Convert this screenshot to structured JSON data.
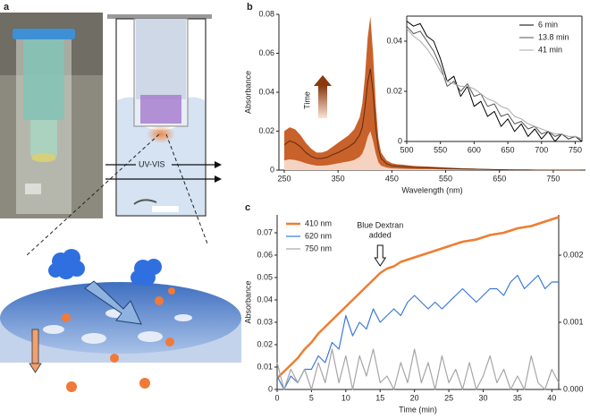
{
  "panel_a": {
    "label": "a",
    "beam_label": "UV-VIS"
  },
  "chart_data": [
    {
      "type": "line",
      "panel_label": "b",
      "x_label": "Wavelength (nm)",
      "y_label": "Absorbance",
      "colorbar_label": "Time",
      "x": [
        250,
        260,
        270,
        280,
        290,
        300,
        310,
        320,
        330,
        340,
        350,
        360,
        370,
        380,
        390,
        395,
        400,
        405,
        410,
        415,
        420,
        425,
        430,
        440,
        450,
        460,
        470,
        480,
        490,
        500,
        520,
        540,
        560,
        580,
        600,
        620,
        640,
        660,
        680,
        700,
        720,
        740,
        760,
        780,
        800
      ],
      "series": [
        {
          "color": "#c9612a",
          "fill": true,
          "values": [
            0.02,
            0.022,
            0.021,
            0.018,
            0.014,
            0.011,
            0.009,
            0.009,
            0.01,
            0.012,
            0.014,
            0.016,
            0.018,
            0.021,
            0.027,
            0.034,
            0.048,
            0.068,
            0.079,
            0.06,
            0.034,
            0.016,
            0.009,
            0.005,
            0.0035,
            0.003,
            0.0028,
            0.0025,
            0.0022,
            0.002,
            0.0018,
            0.0015,
            0.0012,
            0.001,
            0.0008,
            0.0006,
            0.0004,
            0.0003,
            0.0002,
            0.0001,
            0,
            0,
            0,
            0,
            0
          ]
        },
        {
          "color": "#f6d3c0",
          "fill": true,
          "values": [
            0.005,
            0.0055,
            0.0052,
            0.0045,
            0.0035,
            0.0028,
            0.0023,
            0.0023,
            0.0025,
            0.003,
            0.0035,
            0.004,
            0.0045,
            0.0052,
            0.0068,
            0.0085,
            0.012,
            0.017,
            0.02,
            0.015,
            0.0085,
            0.004,
            0.0023,
            0.0013,
            0.0009,
            0.0008,
            0.0007,
            0.0006,
            0.0006,
            0.0005,
            0.0005,
            0.0004,
            0.0003,
            0.0003,
            0.0002,
            0.0002,
            0.0001,
            0.0001,
            0,
            0,
            0,
            0,
            0,
            0,
            0
          ]
        },
        {
          "color": "#5a2c10",
          "fill": false,
          "values": [
            0.013,
            0.015,
            0.014,
            0.012,
            0.009,
            0.007,
            0.006,
            0.006,
            0.0066,
            0.008,
            0.009,
            0.0105,
            0.012,
            0.014,
            0.018,
            0.022,
            0.032,
            0.045,
            0.052,
            0.04,
            0.022,
            0.011,
            0.006,
            0.0033,
            0.0023,
            0.002,
            0.0018,
            0.0016,
            0.0014,
            0.0013,
            0.0012,
            0.001,
            0.0008,
            0.0006,
            0.0005,
            0.0004,
            0.0003,
            0.0002,
            0.0001,
            0.0001,
            0,
            0,
            0,
            0,
            0
          ]
        }
      ],
      "xlim": [
        240,
        810
      ],
      "xticks": [
        250,
        350,
        450,
        550,
        650,
        750
      ],
      "ylim": [
        0,
        0.08
      ],
      "yticks": [
        0,
        0.02,
        0.04,
        0.06,
        0.08
      ]
    },
    {
      "type": "line",
      "legend": "upper right",
      "x": [
        500,
        510,
        520,
        530,
        540,
        550,
        560,
        570,
        580,
        590,
        600,
        610,
        620,
        630,
        640,
        650,
        660,
        670,
        680,
        690,
        700,
        710,
        720,
        730,
        740,
        750,
        760
      ],
      "series": [
        {
          "name": "6 min",
          "color": "#000000",
          "values": [
            0.048,
            0.046,
            0.047,
            0.042,
            0.04,
            0.033,
            0.024,
            0.026,
            0.018,
            0.022,
            0.014,
            0.016,
            0.01,
            0.012,
            0.006,
            0.009,
            0.004,
            0.007,
            0.002,
            0.005,
            0.001,
            0.004,
            0.0,
            0.003,
            0.001,
            0.002,
            0.0
          ]
        },
        {
          "name": "13.8 min",
          "color": "#555555",
          "values": [
            0.046,
            0.043,
            0.044,
            0.04,
            0.036,
            0.03,
            0.022,
            0.024,
            0.02,
            0.023,
            0.018,
            0.019,
            0.014,
            0.015,
            0.01,
            0.011,
            0.007,
            0.008,
            0.005,
            0.006,
            0.003,
            0.004,
            0.002,
            0.003,
            0.001,
            0.002,
            0.001
          ]
        },
        {
          "name": "41 min",
          "color": "#aaaaaa",
          "values": [
            0.045,
            0.042,
            0.04,
            0.037,
            0.033,
            0.028,
            0.024,
            0.023,
            0.022,
            0.022,
            0.021,
            0.019,
            0.017,
            0.016,
            0.014,
            0.013,
            0.01,
            0.009,
            0.007,
            0.006,
            0.005,
            0.004,
            0.003,
            0.003,
            0.002,
            0.002,
            0.001
          ]
        }
      ],
      "xlim": [
        500,
        760
      ],
      "xticks": [
        500,
        550,
        600,
        650,
        700,
        750
      ],
      "ylim": [
        0,
        0.05
      ],
      "yticks": [
        0,
        0.02,
        0.04
      ]
    },
    {
      "type": "line",
      "panel_label": "c",
      "x_label": "Time (min)",
      "y_label": "Absorbance",
      "legend": "upper left",
      "annotation": {
        "lines": [
          "Blue Dextran",
          "added"
        ],
        "x": 15
      },
      "x": [
        0,
        1,
        2,
        3,
        4,
        5,
        6,
        7,
        8,
        9,
        10,
        11,
        12,
        13,
        14,
        15,
        16,
        17,
        18,
        19,
        20,
        21,
        22,
        23,
        24,
        25,
        26,
        27,
        28,
        29,
        30,
        31,
        32,
        33,
        34,
        35,
        36,
        37,
        38,
        39,
        40,
        41
      ],
      "series": [
        {
          "name": "410 nm",
          "color": "#ee7d31",
          "values": [
            0.005,
            0.008,
            0.011,
            0.014,
            0.018,
            0.021,
            0.025,
            0.028,
            0.031,
            0.034,
            0.037,
            0.04,
            0.043,
            0.046,
            0.049,
            0.052,
            0.054,
            0.055,
            0.057,
            0.058,
            0.059,
            0.06,
            0.061,
            0.062,
            0.063,
            0.064,
            0.065,
            0.066,
            0.0665,
            0.067,
            0.068,
            0.069,
            0.0695,
            0.07,
            0.071,
            0.072,
            0.0725,
            0.073,
            0.074,
            0.075,
            0.076,
            0.077
          ]
        },
        {
          "name": "620 nm",
          "color": "#3a78d8",
          "axis": "y2",
          "values": [
            0.0002,
            0.0,
            0.0002,
            0.0001,
            0.0003,
            0.0003,
            0.0005,
            0.0004,
            0.0007,
            0.0006,
            0.0011,
            0.0008,
            0.001,
            0.0009,
            0.0012,
            0.001,
            0.0011,
            0.0012,
            0.0011,
            0.0013,
            0.0014,
            0.0013,
            0.0012,
            0.0013,
            0.0012,
            0.0013,
            0.0014,
            0.0015,
            0.0014,
            0.0013,
            0.0014,
            0.0015,
            0.0015,
            0.0014,
            0.0016,
            0.0017,
            0.0015,
            0.0016,
            0.0017,
            0.0015,
            0.0016,
            0.0016
          ]
        },
        {
          "name": "750 nm",
          "color": "#a6a6a6",
          "axis": "y2",
          "values": [
            0.0004,
            0.0,
            0.0003,
            0.0001,
            0.0003,
            0.0,
            0.0004,
            0.0001,
            0.0006,
            0.0001,
            0.0005,
            0.0,
            0.0005,
            0.0002,
            0.0006,
            0.0001,
            0.0002,
            0.0,
            0.0004,
            0.0001,
            0.0006,
            0.0001,
            0.0004,
            0.0,
            0.0005,
            0.0001,
            0.0003,
            0.0,
            0.0004,
            0.0,
            0.0002,
            0.0005,
            0.0001,
            0.0003,
            0.0,
            0.0002,
            0.0,
            0.0005,
            0.0001,
            0.0,
            0.0003,
            0.0001
          ]
        }
      ],
      "xlim": [
        0,
        41
      ],
      "xticks": [
        0,
        5,
        10,
        15,
        20,
        25,
        30,
        35,
        40
      ],
      "ylim": [
        0,
        0.078
      ],
      "yticks": [
        0,
        0.01,
        0.02,
        0.03,
        0.04,
        0.05,
        0.06,
        0.07
      ],
      "y2lim": [
        0,
        0.0026
      ],
      "y2ticks": [
        {
          "value": 0,
          "label": "0.000"
        },
        {
          "value": 0.001,
          "label": "0.001"
        },
        {
          "value": 0.002,
          "label": "0.002"
        }
      ]
    }
  ]
}
